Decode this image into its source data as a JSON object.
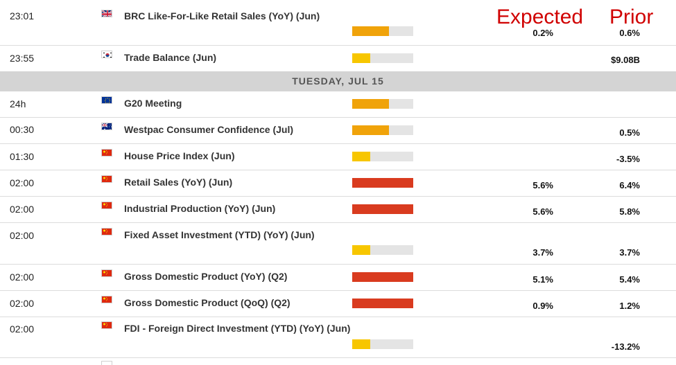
{
  "headers": {
    "expected": "Expected",
    "prior": "Prior"
  },
  "day_separator": "TUESDAY, JUL 15",
  "colors": {
    "high": "#d93b1f",
    "medium": "#f0a30a",
    "low": "#f7c600",
    "track": "#e4e4e4"
  },
  "events": [
    {
      "time": "23:01",
      "flag": "gb",
      "event": "BRC Like-For-Like Retail Sales (YoY) (Jun)",
      "impact": "medium",
      "impact_fill": 0.6,
      "expected": "0.2%",
      "prior": "0.6%"
    },
    {
      "time": "23:55",
      "flag": "kr",
      "event": "Trade Balance (Jun)",
      "impact": "low",
      "impact_fill": 0.3,
      "expected": "",
      "prior": "$9.08B"
    },
    {
      "time": "24h",
      "flag": "eu",
      "event": "G20 Meeting",
      "impact": "medium",
      "impact_fill": 0.6,
      "expected": "",
      "prior": ""
    },
    {
      "time": "00:30",
      "flag": "au",
      "event": "Westpac Consumer Confidence (Jul)",
      "impact": "medium",
      "impact_fill": 0.6,
      "expected": "",
      "prior": "0.5%"
    },
    {
      "time": "01:30",
      "flag": "cn",
      "event": "House Price Index (Jun)",
      "impact": "low",
      "impact_fill": 0.3,
      "expected": "",
      "prior": "-3.5%"
    },
    {
      "time": "02:00",
      "flag": "cn",
      "event": "Retail Sales (YoY) (Jun)",
      "impact": "high",
      "impact_fill": 1.0,
      "expected": "5.6%",
      "prior": "6.4%"
    },
    {
      "time": "02:00",
      "flag": "cn",
      "event": "Industrial Production (YoY) (Jun)",
      "impact": "high",
      "impact_fill": 1.0,
      "expected": "5.6%",
      "prior": "5.8%"
    },
    {
      "time": "02:00",
      "flag": "cn",
      "event": "Fixed Asset Investment (YTD) (YoY) (Jun)",
      "impact": "low",
      "impact_fill": 0.3,
      "expected": "3.7%",
      "prior": "3.7%"
    },
    {
      "time": "02:00",
      "flag": "cn",
      "event": "Gross Domestic Product (YoY) (Q2)",
      "impact": "high",
      "impact_fill": 1.0,
      "expected": "5.1%",
      "prior": "5.4%"
    },
    {
      "time": "02:00",
      "flag": "cn",
      "event": "Gross Domestic Product (QoQ) (Q2)",
      "impact": "high",
      "impact_fill": 1.0,
      "expected": "0.9%",
      "prior": "1.2%"
    },
    {
      "time": "02:00",
      "flag": "cn",
      "event": "FDI - Foreign Direct Investment (YTD) (YoY) (Jun)",
      "impact": "low",
      "impact_fill": 0.3,
      "expected": "",
      "prior": "-13.2%"
    }
  ]
}
